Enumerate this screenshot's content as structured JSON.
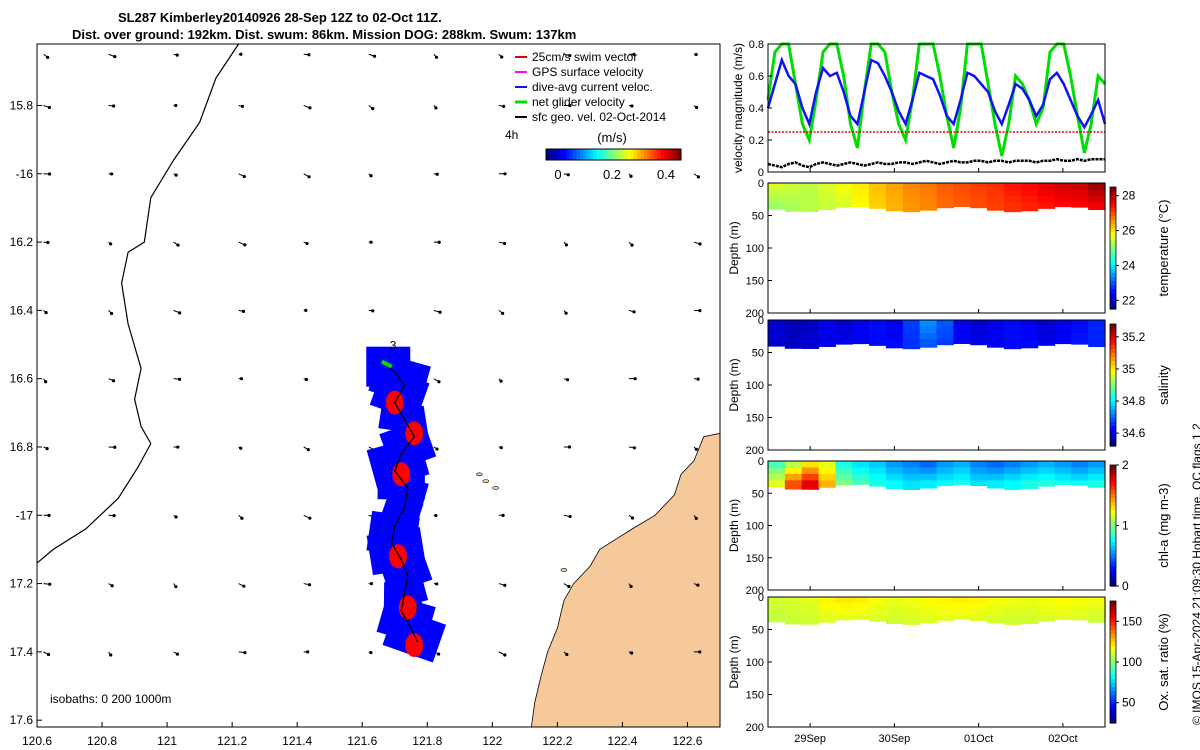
{
  "title": {
    "line1": "SL287 Kimberley20140926 28-Sep 12Z to 02-Oct 11Z.",
    "line2": "Dist. over ground: 192km. Dist. swum: 86km. Mission DOG: 288km. Swum: 137km"
  },
  "credit": "© IMOS 15-Apr-2024 21:09:30 Hobart time. QC flags 1  2",
  "colors": {
    "swim_vector": "#e00000",
    "gps_surface": "#ff00ff",
    "dive_avg": "#1010ff",
    "net_glider": "#00dd00",
    "sfc_geo": "#000000",
    "land": "#f5c99a",
    "track_fill": "#0000ff",
    "track_red": "#ff0000"
  },
  "chart_data": [
    {
      "type": "map",
      "name": "glider track map",
      "xlim": [
        120.6,
        122.7
      ],
      "ylim": [
        -17.62,
        -15.62
      ],
      "x_ticks": [
        {
          "v": 120.6,
          "label": "120.6"
        },
        {
          "v": 120.8,
          "label": "120.8"
        },
        {
          "v": 121,
          "label": "121"
        },
        {
          "v": 121.2,
          "label": "121.2"
        },
        {
          "v": 121.4,
          "label": "121.4"
        },
        {
          "v": 121.6,
          "label": "121.6"
        },
        {
          "v": 121.8,
          "label": "121.8"
        },
        {
          "v": 122,
          "label": "122"
        },
        {
          "v": 122.2,
          "label": "122.2"
        },
        {
          "v": 122.4,
          "label": "122.4"
        },
        {
          "v": 122.6,
          "label": "122.6"
        }
      ],
      "y_ticks": [
        {
          "v": -15.8,
          "label": "15.8"
        },
        {
          "v": -16,
          "label": "-16"
        },
        {
          "v": -16.2,
          "label": "16.2"
        },
        {
          "v": -16.4,
          "label": "16.4"
        },
        {
          "v": -16.6,
          "label": "16.6"
        },
        {
          "v": -16.8,
          "label": "16.8"
        },
        {
          "v": -17,
          "label": "-17"
        },
        {
          "v": -17.2,
          "label": "17.2"
        },
        {
          "v": -17.4,
          "label": "17.4"
        },
        {
          "v": -17.6,
          "label": "17.6"
        }
      ],
      "legend": {
        "position": "top-right",
        "entries": [
          "25cm/s swim vector",
          "GPS surface velocity",
          "dive-avg current veloc.",
          "net glider velocity",
          "sfc geo. vel. 02-Oct-2014"
        ],
        "tag": "4h",
        "colorbar_title": "(m/s)",
        "colorbar_ticks": [
          "0",
          "0.2",
          "0.4"
        ],
        "colorbar_range": [
          0,
          0.5
        ]
      },
      "annotations": {
        "track_start_label": "3",
        "isobaths": "isobaths: 0   200  1000m"
      },
      "isobath_1000m": [
        [
          121.22,
          -15.62
        ],
        [
          121.15,
          -15.72
        ],
        [
          121.1,
          -15.85
        ],
        [
          121.02,
          -15.96
        ],
        [
          120.95,
          -16.07
        ],
        [
          120.93,
          -16.2
        ],
        [
          120.88,
          -16.23
        ],
        [
          120.86,
          -16.32
        ],
        [
          120.88,
          -16.44
        ],
        [
          120.92,
          -16.57
        ],
        [
          120.9,
          -16.66
        ],
        [
          120.92,
          -16.74
        ],
        [
          120.95,
          -16.79
        ],
        [
          120.91,
          -16.86
        ],
        [
          120.85,
          -16.95
        ],
        [
          120.75,
          -17.04
        ],
        [
          120.65,
          -17.1
        ],
        [
          120.6,
          -17.14
        ]
      ],
      "coastline": [
        [
          122.7,
          -16.76
        ],
        [
          122.65,
          -16.77
        ],
        [
          122.62,
          -16.84
        ],
        [
          122.58,
          -16.88
        ],
        [
          122.56,
          -16.94
        ],
        [
          122.5,
          -17.0
        ],
        [
          122.43,
          -17.04
        ],
        [
          122.38,
          -17.07
        ],
        [
          122.33,
          -17.1
        ],
        [
          122.3,
          -17.15
        ],
        [
          122.25,
          -17.2
        ],
        [
          122.22,
          -17.25
        ],
        [
          122.2,
          -17.33
        ],
        [
          122.17,
          -17.4
        ],
        [
          122.15,
          -17.47
        ],
        [
          122.13,
          -17.55
        ],
        [
          122.12,
          -17.62
        ]
      ],
      "glider_track": [
        [
          121.66,
          -16.55
        ],
        [
          121.7,
          -16.58
        ],
        [
          121.73,
          -16.62
        ],
        [
          121.7,
          -16.67
        ],
        [
          121.73,
          -16.72
        ],
        [
          121.76,
          -16.77
        ],
        [
          121.72,
          -16.82
        ],
        [
          121.7,
          -16.87
        ],
        [
          121.74,
          -16.92
        ],
        [
          121.73,
          -16.98
        ],
        [
          121.7,
          -17.03
        ],
        [
          121.69,
          -17.08
        ],
        [
          121.72,
          -17.13
        ],
        [
          121.74,
          -17.18
        ],
        [
          121.73,
          -17.23
        ],
        [
          121.72,
          -17.28
        ],
        [
          121.75,
          -17.33
        ],
        [
          121.77,
          -17.37
        ]
      ],
      "current_field": {
        "lons": [
          120.62,
          120.82,
          121.02,
          121.22,
          121.42,
          121.62,
          121.82,
          122.02,
          122.22,
          122.42,
          122.62
        ],
        "lats": [
          -15.65,
          -15.8,
          -16.0,
          -16.2,
          -16.4,
          -16.6,
          -16.8,
          -17.0,
          -17.2,
          -17.4
        ],
        "u_typical": 0.04,
        "v_typical": -0.02
      }
    },
    {
      "type": "line",
      "name": "velocity magnitude",
      "ylabel": "velocity magnitude (m/s)",
      "ylim": [
        0,
        0.8
      ],
      "y_ticks": [
        "0",
        "0.2",
        "0.4",
        "0.6",
        "0.8"
      ],
      "x_range_days": [
        0,
        4
      ],
      "series": [
        {
          "name": "net glider velocity",
          "color": "#00dd00",
          "values": [
            0.45,
            0.75,
            0.8,
            0.8,
            0.55,
            0.3,
            0.2,
            0.45,
            0.75,
            0.8,
            0.8,
            0.6,
            0.3,
            0.15,
            0.5,
            0.8,
            0.8,
            0.75,
            0.5,
            0.3,
            0.2,
            0.45,
            0.8,
            0.8,
            0.8,
            0.6,
            0.35,
            0.15,
            0.4,
            0.8,
            0.8,
            0.8,
            0.55,
            0.3,
            0.1,
            0.3,
            0.6,
            0.55,
            0.45,
            0.3,
            0.4,
            0.75,
            0.8,
            0.8,
            0.6,
            0.35,
            0.12,
            0.3,
            0.6,
            0.55
          ]
        },
        {
          "name": "dive-avg current veloc.",
          "color": "#1010ff",
          "values": [
            0.4,
            0.55,
            0.7,
            0.6,
            0.55,
            0.4,
            0.3,
            0.5,
            0.65,
            0.6,
            0.62,
            0.5,
            0.35,
            0.3,
            0.5,
            0.7,
            0.68,
            0.6,
            0.5,
            0.38,
            0.3,
            0.45,
            0.62,
            0.6,
            0.58,
            0.48,
            0.35,
            0.3,
            0.45,
            0.62,
            0.6,
            0.55,
            0.5,
            0.38,
            0.3,
            0.42,
            0.55,
            0.52,
            0.45,
            0.35,
            0.42,
            0.58,
            0.62,
            0.55,
            0.45,
            0.35,
            0.28,
            0.36,
            0.45,
            0.3
          ]
        },
        {
          "name": "swim vector",
          "color": "#e00000",
          "values": [
            0.25,
            0.25,
            0.25,
            0.25,
            0.25,
            0.25,
            0.25,
            0.25,
            0.25,
            0.25,
            0.25,
            0.25,
            0.25,
            0.25,
            0.25,
            0.25,
            0.25,
            0.25,
            0.25,
            0.25,
            0.25,
            0.25,
            0.25,
            0.25,
            0.25,
            0.25,
            0.25,
            0.25,
            0.25,
            0.25,
            0.25,
            0.25,
            0.25,
            0.25,
            0.25,
            0.25,
            0.25,
            0.25,
            0.25,
            0.25,
            0.25,
            0.25,
            0.25,
            0.25,
            0.25,
            0.25,
            0.25,
            0.25,
            0.25,
            0.25
          ]
        },
        {
          "name": "sfc geo. vel.",
          "color": "#000000",
          "values": [
            0.05,
            0.04,
            0.03,
            0.05,
            0.06,
            0.04,
            0.03,
            0.05,
            0.06,
            0.05,
            0.04,
            0.05,
            0.06,
            0.05,
            0.04,
            0.05,
            0.06,
            0.05,
            0.05,
            0.06,
            0.06,
            0.05,
            0.06,
            0.07,
            0.06,
            0.05,
            0.06,
            0.07,
            0.06,
            0.06,
            0.07,
            0.07,
            0.06,
            0.07,
            0.07,
            0.06,
            0.07,
            0.07,
            0.07,
            0.06,
            0.07,
            0.07,
            0.08,
            0.07,
            0.07,
            0.08,
            0.07,
            0.08,
            0.08,
            0.08
          ]
        }
      ]
    },
    {
      "type": "heatmap",
      "name": "temperature section",
      "ylabel": "Depth (m)",
      "ylim": [
        0,
        200
      ],
      "y_ticks": [
        "0",
        "50",
        "100",
        "150",
        "200"
      ],
      "colorbar_label": "temperature (°C)",
      "colorbar_ticks": [
        "22",
        "24",
        "26",
        "28"
      ],
      "colorbar_range": [
        21.5,
        28.5
      ],
      "profile_depth_m": 40,
      "surface_values": [
        25.6,
        25.5,
        25.4,
        25.6,
        25.8,
        26.0,
        26.3,
        26.5,
        26.7,
        26.8,
        27.0,
        27.1,
        27.2,
        27.3,
        27.5,
        27.6,
        27.8,
        27.9,
        28.0,
        28.3
      ],
      "deep_values": [
        25.2,
        25.3,
        25.4,
        25.5,
        25.6,
        25.9,
        26.2,
        26.4,
        26.6,
        26.7,
        26.9,
        27.0,
        27.1,
        27.2,
        27.3,
        27.4,
        27.5,
        27.6,
        27.6,
        27.7
      ]
    },
    {
      "type": "heatmap",
      "name": "salinity section",
      "ylabel": "Depth (m)",
      "ylim": [
        0,
        200
      ],
      "y_ticks": [
        "0",
        "50",
        "100",
        "150",
        "200"
      ],
      "colorbar_label": "salinity",
      "colorbar_ticks": [
        "34.6",
        "34.8",
        "35",
        "35.2"
      ],
      "colorbar_range": [
        34.52,
        35.28
      ],
      "profile_depth_m": 40,
      "surface_values": [
        34.58,
        34.56,
        34.57,
        34.6,
        34.58,
        34.6,
        34.62,
        34.6,
        34.66,
        34.72,
        34.68,
        34.6,
        34.58,
        34.6,
        34.62,
        34.6,
        34.58,
        34.6,
        34.62,
        34.64
      ],
      "deep_values": [
        34.58,
        34.57,
        34.58,
        34.6,
        34.6,
        34.61,
        34.62,
        34.62,
        34.65,
        34.68,
        34.66,
        34.62,
        34.6,
        34.61,
        34.62,
        34.62,
        34.6,
        34.61,
        34.63,
        34.64
      ]
    },
    {
      "type": "heatmap",
      "name": "chlorophyll section",
      "ylabel": "Depth (m)",
      "ylim": [
        0,
        200
      ],
      "y_ticks": [
        "0",
        "50",
        "100",
        "150",
        "200"
      ],
      "colorbar_label": "chl-a (mg m-3)",
      "colorbar_ticks": [
        "0",
        "1",
        "2"
      ],
      "colorbar_range": [
        0,
        2
      ],
      "profile_depth_m": 40,
      "surface_values": [
        0.9,
        1.1,
        1.3,
        1.2,
        0.8,
        0.7,
        0.65,
        0.55,
        0.5,
        0.45,
        0.55,
        0.6,
        0.5,
        0.45,
        0.5,
        0.55,
        0.6,
        0.55,
        0.5,
        0.55
      ],
      "deep_values": [
        1.2,
        1.6,
        1.8,
        1.4,
        1.0,
        0.9,
        0.8,
        0.75,
        0.7,
        0.72,
        0.75,
        0.78,
        0.7,
        0.72,
        0.75,
        0.8,
        0.82,
        0.78,
        0.75,
        0.8
      ]
    },
    {
      "type": "heatmap",
      "name": "oxygen saturation section",
      "ylabel": "Depth (m)",
      "ylim": [
        0,
        200
      ],
      "y_ticks": [
        "0",
        "50",
        "100",
        "150",
        "200"
      ],
      "x_ticks": [
        "29Sep",
        "30Sep",
        "01Oct",
        "02Oct"
      ],
      "x_tick_days": [
        0.5,
        1.5,
        2.5,
        3.5
      ],
      "colorbar_label": "Ox. sat. ratio (%)",
      "colorbar_ticks": [
        "50",
        "100",
        "150"
      ],
      "colorbar_range": [
        25,
        175
      ],
      "profile_depth_m": 38,
      "surface_values": [
        112,
        113,
        115,
        120,
        122,
        121,
        118,
        116,
        117,
        119,
        120,
        121,
        120,
        118,
        117,
        116,
        118,
        119,
        118,
        117
      ],
      "deep_values": [
        110,
        111,
        112,
        114,
        115,
        114,
        113,
        112,
        113,
        114,
        115,
        115,
        114,
        113,
        112,
        112,
        113,
        114,
        113,
        112
      ]
    }
  ]
}
